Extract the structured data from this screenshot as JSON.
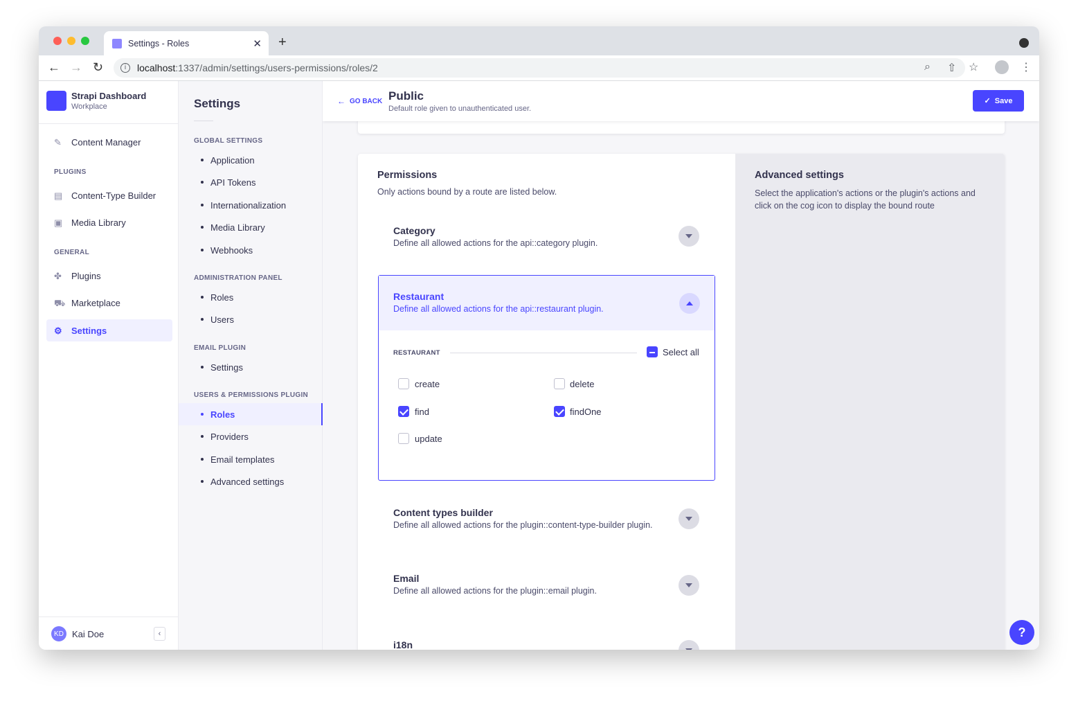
{
  "browser": {
    "tab_title": "Settings - Roles",
    "url_host": "localhost",
    "url_path": ":1337/admin/settings/users-permissions/roles/2"
  },
  "nav": {
    "brand": "Strapi Dashboard",
    "workspace": "Workplace",
    "content_manager": "Content Manager",
    "plugins_section": "PLUGINS",
    "content_type_builder": "Content-Type Builder",
    "media_library": "Media Library",
    "general_section": "GENERAL",
    "plugins": "Plugins",
    "marketplace": "Marketplace",
    "settings": "Settings",
    "user_initials": "KD",
    "user_name": "Kai Doe"
  },
  "settings_menu": {
    "title": "Settings",
    "sections": [
      {
        "label": "GLOBAL SETTINGS",
        "items": [
          "Application",
          "API Tokens",
          "Internationalization",
          "Media Library",
          "Webhooks"
        ]
      },
      {
        "label": "ADMINISTRATION PANEL",
        "items": [
          "Roles",
          "Users"
        ]
      },
      {
        "label": "EMAIL PLUGIN",
        "items": [
          "Settings"
        ]
      },
      {
        "label": "USERS & PERMISSIONS PLUGIN",
        "items": [
          "Roles",
          "Providers",
          "Email templates",
          "Advanced settings"
        ]
      }
    ],
    "active": "Roles"
  },
  "header": {
    "go_back": "GO BACK",
    "title": "Public",
    "subtitle": "Default role given to unauthenticated user.",
    "save": "Save"
  },
  "permissions": {
    "title": "Permissions",
    "subtitle": "Only actions bound by a route are listed below.",
    "plugins": [
      {
        "name": "Category",
        "desc": "Define all allowed actions for the api::category plugin."
      },
      {
        "name": "Restaurant",
        "desc": "Define all allowed actions for the api::restaurant plugin.",
        "expanded": true
      },
      {
        "name": "Content types builder",
        "desc": "Define all allowed actions for the plugin::content-type-builder plugin."
      },
      {
        "name": "Email",
        "desc": "Define all allowed actions for the plugin::email plugin."
      },
      {
        "name": "i18n",
        "desc": ""
      }
    ],
    "restaurant": {
      "group_label": "RESTAURANT",
      "select_all": "Select all",
      "actions": [
        {
          "label": "create",
          "checked": false
        },
        {
          "label": "delete",
          "checked": false
        },
        {
          "label": "find",
          "checked": true
        },
        {
          "label": "findOne",
          "checked": true
        },
        {
          "label": "update",
          "checked": false
        }
      ]
    }
  },
  "advanced": {
    "title": "Advanced settings",
    "text": "Select the application's actions or the plugin's actions and click on the cog icon to display the bound route"
  },
  "help": "?",
  "colors": {
    "primary": "#4945ff",
    "primary_light": "#f0f0ff"
  }
}
